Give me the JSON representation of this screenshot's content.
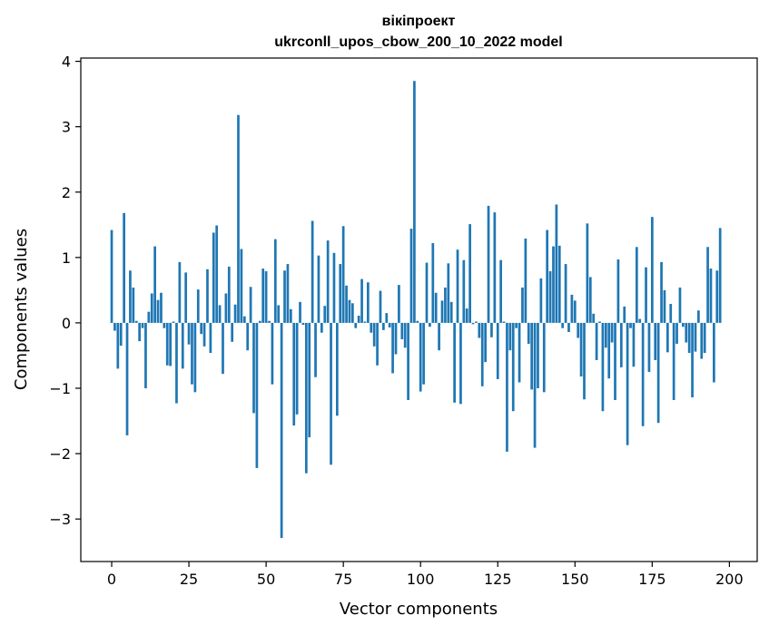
{
  "chart_data": {
    "type": "bar",
    "title_line1": "вікіпроект",
    "title_line2": "ukrconll_upos_cbow_200_10_2022 model",
    "xlabel": "Vector components",
    "ylabel": "Components values",
    "xlim": [
      -10,
      209
    ],
    "ylim": [
      -3.65,
      4.05
    ],
    "xticks": [
      0,
      25,
      50,
      75,
      100,
      125,
      150,
      175,
      200
    ],
    "xtick_labels": [
      "0",
      "25",
      "50",
      "75",
      "100",
      "125",
      "150",
      "175",
      "200"
    ],
    "yticks": [
      -3,
      -2,
      -1,
      0,
      1,
      2,
      3,
      4
    ],
    "ytick_labels": [
      "−3",
      "−2",
      "−1",
      "0",
      "1",
      "2",
      "3",
      "4"
    ],
    "grid": false,
    "bar_color": "#1f77b4",
    "values": [
      1.42,
      -0.12,
      -0.7,
      -0.35,
      1.68,
      -1.72,
      0.8,
      0.54,
      0.03,
      -0.28,
      -0.08,
      -1.0,
      0.17,
      0.45,
      1.17,
      0.35,
      0.46,
      -0.08,
      -0.65,
      -0.66,
      0.02,
      -1.23,
      0.93,
      -0.7,
      0.77,
      -0.33,
      -0.94,
      -1.06,
      0.51,
      -0.17,
      -0.36,
      0.82,
      -0.46,
      1.38,
      1.49,
      0.27,
      -0.78,
      0.45,
      0.86,
      -0.29,
      0.28,
      3.18,
      1.13,
      0.1,
      -0.42,
      0.55,
      -1.38,
      -2.22,
      0.03,
      0.83,
      0.79,
      0.03,
      -0.94,
      1.28,
      0.27,
      -3.29,
      0.8,
      0.9,
      0.21,
      -1.57,
      -1.4,
      0.32,
      -0.03,
      -2.3,
      -1.75,
      1.56,
      -0.83,
      1.03,
      -0.15,
      0.26,
      1.26,
      -2.17,
      1.07,
      -1.42,
      0.9,
      1.48,
      0.57,
      0.35,
      0.3,
      -0.08,
      0.11,
      0.67,
      0.02,
      0.62,
      -0.15,
      -0.36,
      -0.65,
      0.49,
      -0.11,
      0.15,
      -0.07,
      -0.77,
      -0.48,
      0.58,
      -0.25,
      -0.38,
      -1.18,
      1.44,
      3.7,
      0.03,
      -1.05,
      -0.94,
      0.92,
      -0.06,
      1.22,
      0.46,
      -0.42,
      0.34,
      0.54,
      0.91,
      0.32,
      -1.22,
      1.12,
      -1.24,
      0.96,
      0.22,
      1.51,
      -0.02,
      0.02,
      -0.23,
      -0.97,
      -0.6,
      1.79,
      -0.22,
      1.69,
      -0.86,
      0.96,
      0.02,
      -1.97,
      -0.42,
      -1.35,
      -0.08,
      -0.91,
      0.54,
      1.29,
      -0.32,
      -1.02,
      -1.91,
      -1.0,
      0.68,
      -1.06,
      1.42,
      0.79,
      1.17,
      1.81,
      1.18,
      -0.08,
      0.9,
      -0.14,
      0.43,
      0.34,
      -0.23,
      -0.82,
      -1.17,
      1.52,
      0.7,
      0.14,
      -0.57,
      0.02,
      -1.35,
      -0.38,
      -0.85,
      -0.3,
      -1.18,
      0.97,
      -0.68,
      0.25,
      -1.87,
      -0.08,
      -0.67,
      1.16,
      0.06,
      -1.58,
      0.85,
      -0.75,
      1.62,
      -0.57,
      -1.53,
      0.93,
      0.5,
      -0.45,
      0.29,
      -1.18,
      -0.32,
      0.54,
      -0.06,
      -0.3,
      -0.46,
      -1.14,
      -0.44,
      0.19,
      -0.55,
      -0.46,
      1.16,
      0.83,
      -0.91,
      0.8,
      1.45
    ]
  }
}
